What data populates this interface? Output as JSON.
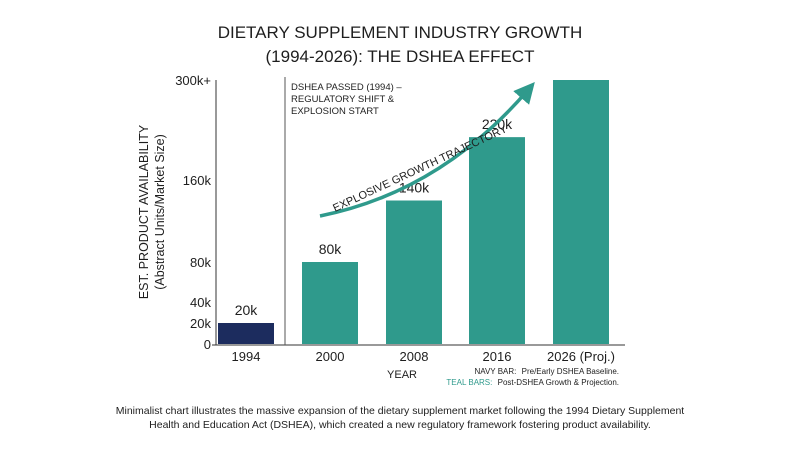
{
  "chart_data": {
    "type": "bar",
    "title_lines": [
      "DIETARY SUPPLEMENT INDUSTRY GROWTH",
      "(1994-2026): THE DSHEA EFFECT"
    ],
    "ylabel_lines": [
      "EST. PRODUCT AVAILABILITY",
      "(Abstract Units/Market Size)"
    ],
    "xlabel": "YEAR",
    "categories": [
      "1994",
      "2000",
      "2008",
      "2016",
      "2026 (Proj.)"
    ],
    "values": [
      20,
      80,
      140,
      220,
      300
    ],
    "data_labels": [
      "20k",
      "80k",
      "140k",
      "220k",
      ""
    ],
    "bar_colors": [
      "#1c2c5e",
      "#2f9a8c",
      "#2f9a8c",
      "#2f9a8c",
      "#2f9a8c"
    ],
    "y_ticks": [
      {
        "value": 0,
        "label": "0"
      },
      {
        "value": 20,
        "label": "20k"
      },
      {
        "value": 40,
        "label": "40k"
      },
      {
        "value": 80,
        "label": "80k"
      },
      {
        "value": 160,
        "label": "160k"
      },
      {
        "value": 300,
        "label": "300k+"
      }
    ],
    "ylim": [
      0,
      300
    ],
    "grid": false,
    "vline": {
      "label_lines": [
        "DSHEA PASSED (1994) –",
        "REGULATORY SHIFT &",
        "EXPLOSION START"
      ]
    },
    "trajectory_label": "EXPLOSIVE GROWTH TRAJECTORY",
    "legend": {
      "navy_key": "NAVY BAR:",
      "navy_text": "Pre/Early DSHEA Baseline.",
      "teal_key": "TEAL BARS:",
      "teal_text": "Post-DSHEA Growth & Projection."
    },
    "caption_lines": [
      "Minimalist chart illustrates the massive expansion of the dietary supplement market following the 1994 Dietary Supplement",
      "Health and Education Act (DSHEA), which created a new regulatory framework fostering product availability."
    ],
    "colors": {
      "navy": "#1c2c5e",
      "teal": "#2f9a8c",
      "text": "#1e1e1e",
      "axis": "#333333"
    }
  }
}
